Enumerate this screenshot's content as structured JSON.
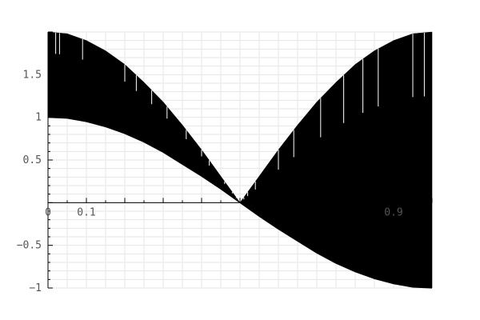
{
  "chart_data": {
    "type": "line",
    "title": "",
    "xlabel": "",
    "ylabel": "",
    "xlim": [
      0,
      1
    ],
    "ylim": [
      -1,
      2
    ],
    "grid": true,
    "x_tick_labels": [
      {
        "value": 0,
        "label": "0"
      },
      {
        "value": 0.1,
        "label": "0.1"
      },
      {
        "value": 0.9,
        "label": "0.9"
      }
    ],
    "y_tick_labels": [
      {
        "value": 1.5,
        "label": "1.5"
      },
      {
        "value": 1,
        "label": "1"
      },
      {
        "value": 0.5,
        "label": "0.5"
      },
      {
        "value": -0.5,
        "label": "−0.5"
      },
      {
        "value": -1,
        "label": "−1"
      }
    ],
    "series": [
      {
        "color": "#000000",
        "lower_envelope": {
          "x": [
            0,
            0.05,
            0.1,
            0.15,
            0.2,
            0.25,
            0.3,
            0.35,
            0.4,
            0.45,
            0.5,
            0.55,
            0.6,
            0.65,
            0.7,
            0.75,
            0.8,
            0.85,
            0.9,
            0.95,
            1
          ],
          "y": [
            1,
            0.99,
            0.95,
            0.89,
            0.81,
            0.71,
            0.59,
            0.45,
            0.31,
            0.16,
            0,
            -0.16,
            -0.31,
            -0.45,
            -0.59,
            -0.71,
            -0.81,
            -0.89,
            -0.95,
            -0.99,
            -1
          ]
        },
        "upper_envelope": {
          "x": [
            0,
            0.05,
            0.1,
            0.15,
            0.2,
            0.25,
            0.3,
            0.35,
            0.4,
            0.45,
            0.5,
            0.55,
            0.6,
            0.65,
            0.7,
            0.75,
            0.8,
            0.85,
            0.9,
            0.95,
            1
          ],
          "y": [
            2,
            1.98,
            1.9,
            1.78,
            1.62,
            1.41,
            1.18,
            0.91,
            0.62,
            0.31,
            0,
            0.31,
            0.62,
            0.91,
            1.18,
            1.41,
            1.62,
            1.78,
            1.9,
            1.98,
            2
          ]
        }
      }
    ]
  }
}
